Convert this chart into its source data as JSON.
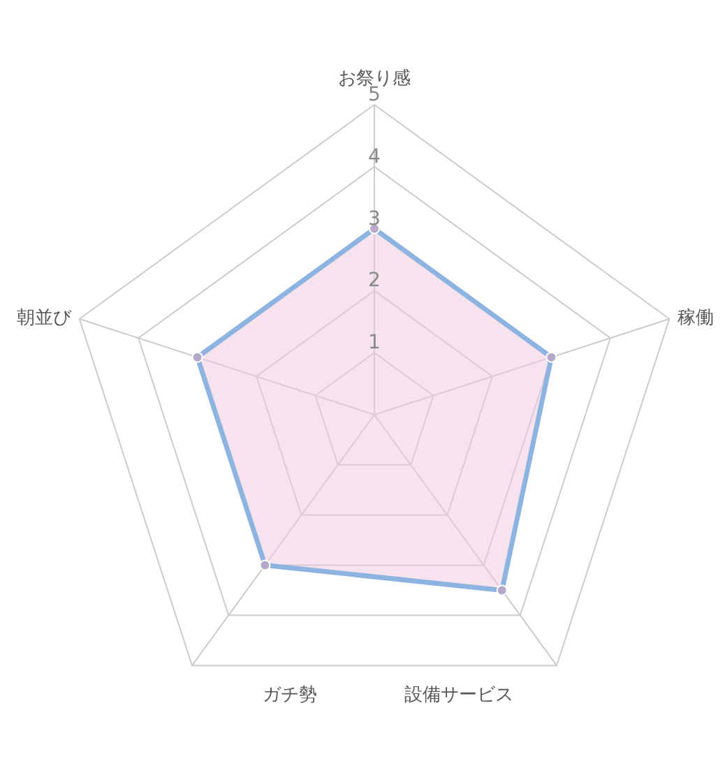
{
  "chart_data": {
    "type": "radar",
    "categories": [
      "お祭り感",
      "稼働",
      "設備サービス",
      "ガチ勢",
      "朝並び"
    ],
    "series": [
      {
        "color": "#8db4e0",
        "values": [
          3,
          3,
          3.5,
          3,
          3
        ]
      }
    ],
    "ylim": [
      0,
      5
    ],
    "yticks": [
      1,
      2,
      3,
      4,
      5
    ],
    "grid": true,
    "marker": "circle"
  }
}
